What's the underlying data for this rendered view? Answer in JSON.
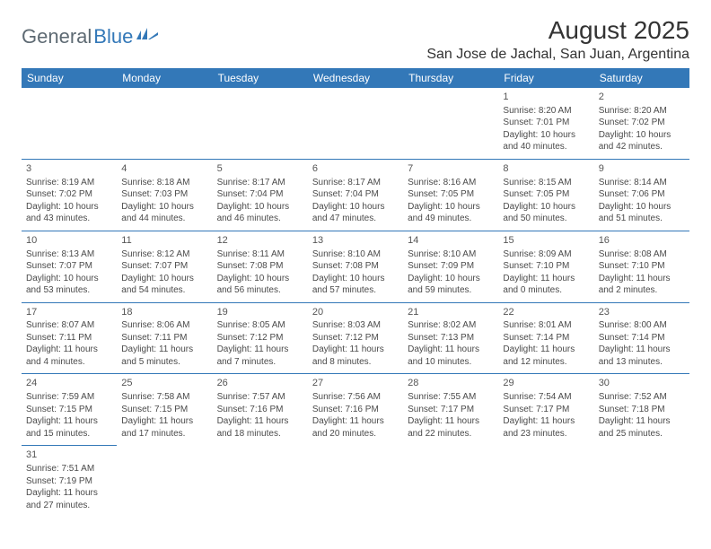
{
  "logo": {
    "text1": "General",
    "text2": "Blue"
  },
  "header": {
    "title": "August 2025",
    "location": "San Jose de Jachal, San Juan, Argentina"
  },
  "colors": {
    "brand_blue": "#3378b8",
    "logo_gray": "#5e6a73",
    "text": "#4a4a4a",
    "background": "#ffffff"
  },
  "dayNames": [
    "Sunday",
    "Monday",
    "Tuesday",
    "Wednesday",
    "Thursday",
    "Friday",
    "Saturday"
  ],
  "weeks": [
    [
      null,
      null,
      null,
      null,
      null,
      {
        "d": "1",
        "sr": "Sunrise: 8:20 AM",
        "ss": "Sunset: 7:01 PM",
        "dl1": "Daylight: 10 hours",
        "dl2": "and 40 minutes."
      },
      {
        "d": "2",
        "sr": "Sunrise: 8:20 AM",
        "ss": "Sunset: 7:02 PM",
        "dl1": "Daylight: 10 hours",
        "dl2": "and 42 minutes."
      }
    ],
    [
      {
        "d": "3",
        "sr": "Sunrise: 8:19 AM",
        "ss": "Sunset: 7:02 PM",
        "dl1": "Daylight: 10 hours",
        "dl2": "and 43 minutes."
      },
      {
        "d": "4",
        "sr": "Sunrise: 8:18 AM",
        "ss": "Sunset: 7:03 PM",
        "dl1": "Daylight: 10 hours",
        "dl2": "and 44 minutes."
      },
      {
        "d": "5",
        "sr": "Sunrise: 8:17 AM",
        "ss": "Sunset: 7:04 PM",
        "dl1": "Daylight: 10 hours",
        "dl2": "and 46 minutes."
      },
      {
        "d": "6",
        "sr": "Sunrise: 8:17 AM",
        "ss": "Sunset: 7:04 PM",
        "dl1": "Daylight: 10 hours",
        "dl2": "and 47 minutes."
      },
      {
        "d": "7",
        "sr": "Sunrise: 8:16 AM",
        "ss": "Sunset: 7:05 PM",
        "dl1": "Daylight: 10 hours",
        "dl2": "and 49 minutes."
      },
      {
        "d": "8",
        "sr": "Sunrise: 8:15 AM",
        "ss": "Sunset: 7:05 PM",
        "dl1": "Daylight: 10 hours",
        "dl2": "and 50 minutes."
      },
      {
        "d": "9",
        "sr": "Sunrise: 8:14 AM",
        "ss": "Sunset: 7:06 PM",
        "dl1": "Daylight: 10 hours",
        "dl2": "and 51 minutes."
      }
    ],
    [
      {
        "d": "10",
        "sr": "Sunrise: 8:13 AM",
        "ss": "Sunset: 7:07 PM",
        "dl1": "Daylight: 10 hours",
        "dl2": "and 53 minutes."
      },
      {
        "d": "11",
        "sr": "Sunrise: 8:12 AM",
        "ss": "Sunset: 7:07 PM",
        "dl1": "Daylight: 10 hours",
        "dl2": "and 54 minutes."
      },
      {
        "d": "12",
        "sr": "Sunrise: 8:11 AM",
        "ss": "Sunset: 7:08 PM",
        "dl1": "Daylight: 10 hours",
        "dl2": "and 56 minutes."
      },
      {
        "d": "13",
        "sr": "Sunrise: 8:10 AM",
        "ss": "Sunset: 7:08 PM",
        "dl1": "Daylight: 10 hours",
        "dl2": "and 57 minutes."
      },
      {
        "d": "14",
        "sr": "Sunrise: 8:10 AM",
        "ss": "Sunset: 7:09 PM",
        "dl1": "Daylight: 10 hours",
        "dl2": "and 59 minutes."
      },
      {
        "d": "15",
        "sr": "Sunrise: 8:09 AM",
        "ss": "Sunset: 7:10 PM",
        "dl1": "Daylight: 11 hours",
        "dl2": "and 0 minutes."
      },
      {
        "d": "16",
        "sr": "Sunrise: 8:08 AM",
        "ss": "Sunset: 7:10 PM",
        "dl1": "Daylight: 11 hours",
        "dl2": "and 2 minutes."
      }
    ],
    [
      {
        "d": "17",
        "sr": "Sunrise: 8:07 AM",
        "ss": "Sunset: 7:11 PM",
        "dl1": "Daylight: 11 hours",
        "dl2": "and 4 minutes."
      },
      {
        "d": "18",
        "sr": "Sunrise: 8:06 AM",
        "ss": "Sunset: 7:11 PM",
        "dl1": "Daylight: 11 hours",
        "dl2": "and 5 minutes."
      },
      {
        "d": "19",
        "sr": "Sunrise: 8:05 AM",
        "ss": "Sunset: 7:12 PM",
        "dl1": "Daylight: 11 hours",
        "dl2": "and 7 minutes."
      },
      {
        "d": "20",
        "sr": "Sunrise: 8:03 AM",
        "ss": "Sunset: 7:12 PM",
        "dl1": "Daylight: 11 hours",
        "dl2": "and 8 minutes."
      },
      {
        "d": "21",
        "sr": "Sunrise: 8:02 AM",
        "ss": "Sunset: 7:13 PM",
        "dl1": "Daylight: 11 hours",
        "dl2": "and 10 minutes."
      },
      {
        "d": "22",
        "sr": "Sunrise: 8:01 AM",
        "ss": "Sunset: 7:14 PM",
        "dl1": "Daylight: 11 hours",
        "dl2": "and 12 minutes."
      },
      {
        "d": "23",
        "sr": "Sunrise: 8:00 AM",
        "ss": "Sunset: 7:14 PM",
        "dl1": "Daylight: 11 hours",
        "dl2": "and 13 minutes."
      }
    ],
    [
      {
        "d": "24",
        "sr": "Sunrise: 7:59 AM",
        "ss": "Sunset: 7:15 PM",
        "dl1": "Daylight: 11 hours",
        "dl2": "and 15 minutes."
      },
      {
        "d": "25",
        "sr": "Sunrise: 7:58 AM",
        "ss": "Sunset: 7:15 PM",
        "dl1": "Daylight: 11 hours",
        "dl2": "and 17 minutes."
      },
      {
        "d": "26",
        "sr": "Sunrise: 7:57 AM",
        "ss": "Sunset: 7:16 PM",
        "dl1": "Daylight: 11 hours",
        "dl2": "and 18 minutes."
      },
      {
        "d": "27",
        "sr": "Sunrise: 7:56 AM",
        "ss": "Sunset: 7:16 PM",
        "dl1": "Daylight: 11 hours",
        "dl2": "and 20 minutes."
      },
      {
        "d": "28",
        "sr": "Sunrise: 7:55 AM",
        "ss": "Sunset: 7:17 PM",
        "dl1": "Daylight: 11 hours",
        "dl2": "and 22 minutes."
      },
      {
        "d": "29",
        "sr": "Sunrise: 7:54 AM",
        "ss": "Sunset: 7:17 PM",
        "dl1": "Daylight: 11 hours",
        "dl2": "and 23 minutes."
      },
      {
        "d": "30",
        "sr": "Sunrise: 7:52 AM",
        "ss": "Sunset: 7:18 PM",
        "dl1": "Daylight: 11 hours",
        "dl2": "and 25 minutes."
      }
    ],
    [
      {
        "d": "31",
        "sr": "Sunrise: 7:51 AM",
        "ss": "Sunset: 7:19 PM",
        "dl1": "Daylight: 11 hours",
        "dl2": "and 27 minutes."
      },
      null,
      null,
      null,
      null,
      null,
      null
    ]
  ]
}
